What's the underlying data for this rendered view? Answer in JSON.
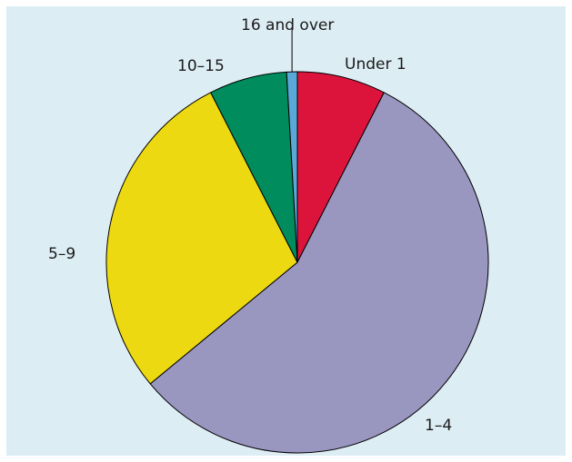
{
  "chart_data": {
    "type": "pie",
    "title": "",
    "start": "12 o'clock",
    "direction": "clockwise",
    "slices": [
      {
        "label": "Under 1",
        "value": 7.5,
        "color": "#dc143c"
      },
      {
        "label": "1–4",
        "value": 56.5,
        "color": "#9996c0"
      },
      {
        "label": "5–9",
        "value": 28.5,
        "color": "#ecd912"
      },
      {
        "label": "10–15",
        "value": 6.6,
        "color": "#008c5c"
      },
      {
        "label": "16 and over",
        "value": 0.9,
        "color": "#5aa8d8"
      }
    ],
    "background_color": "#ddedf4"
  }
}
